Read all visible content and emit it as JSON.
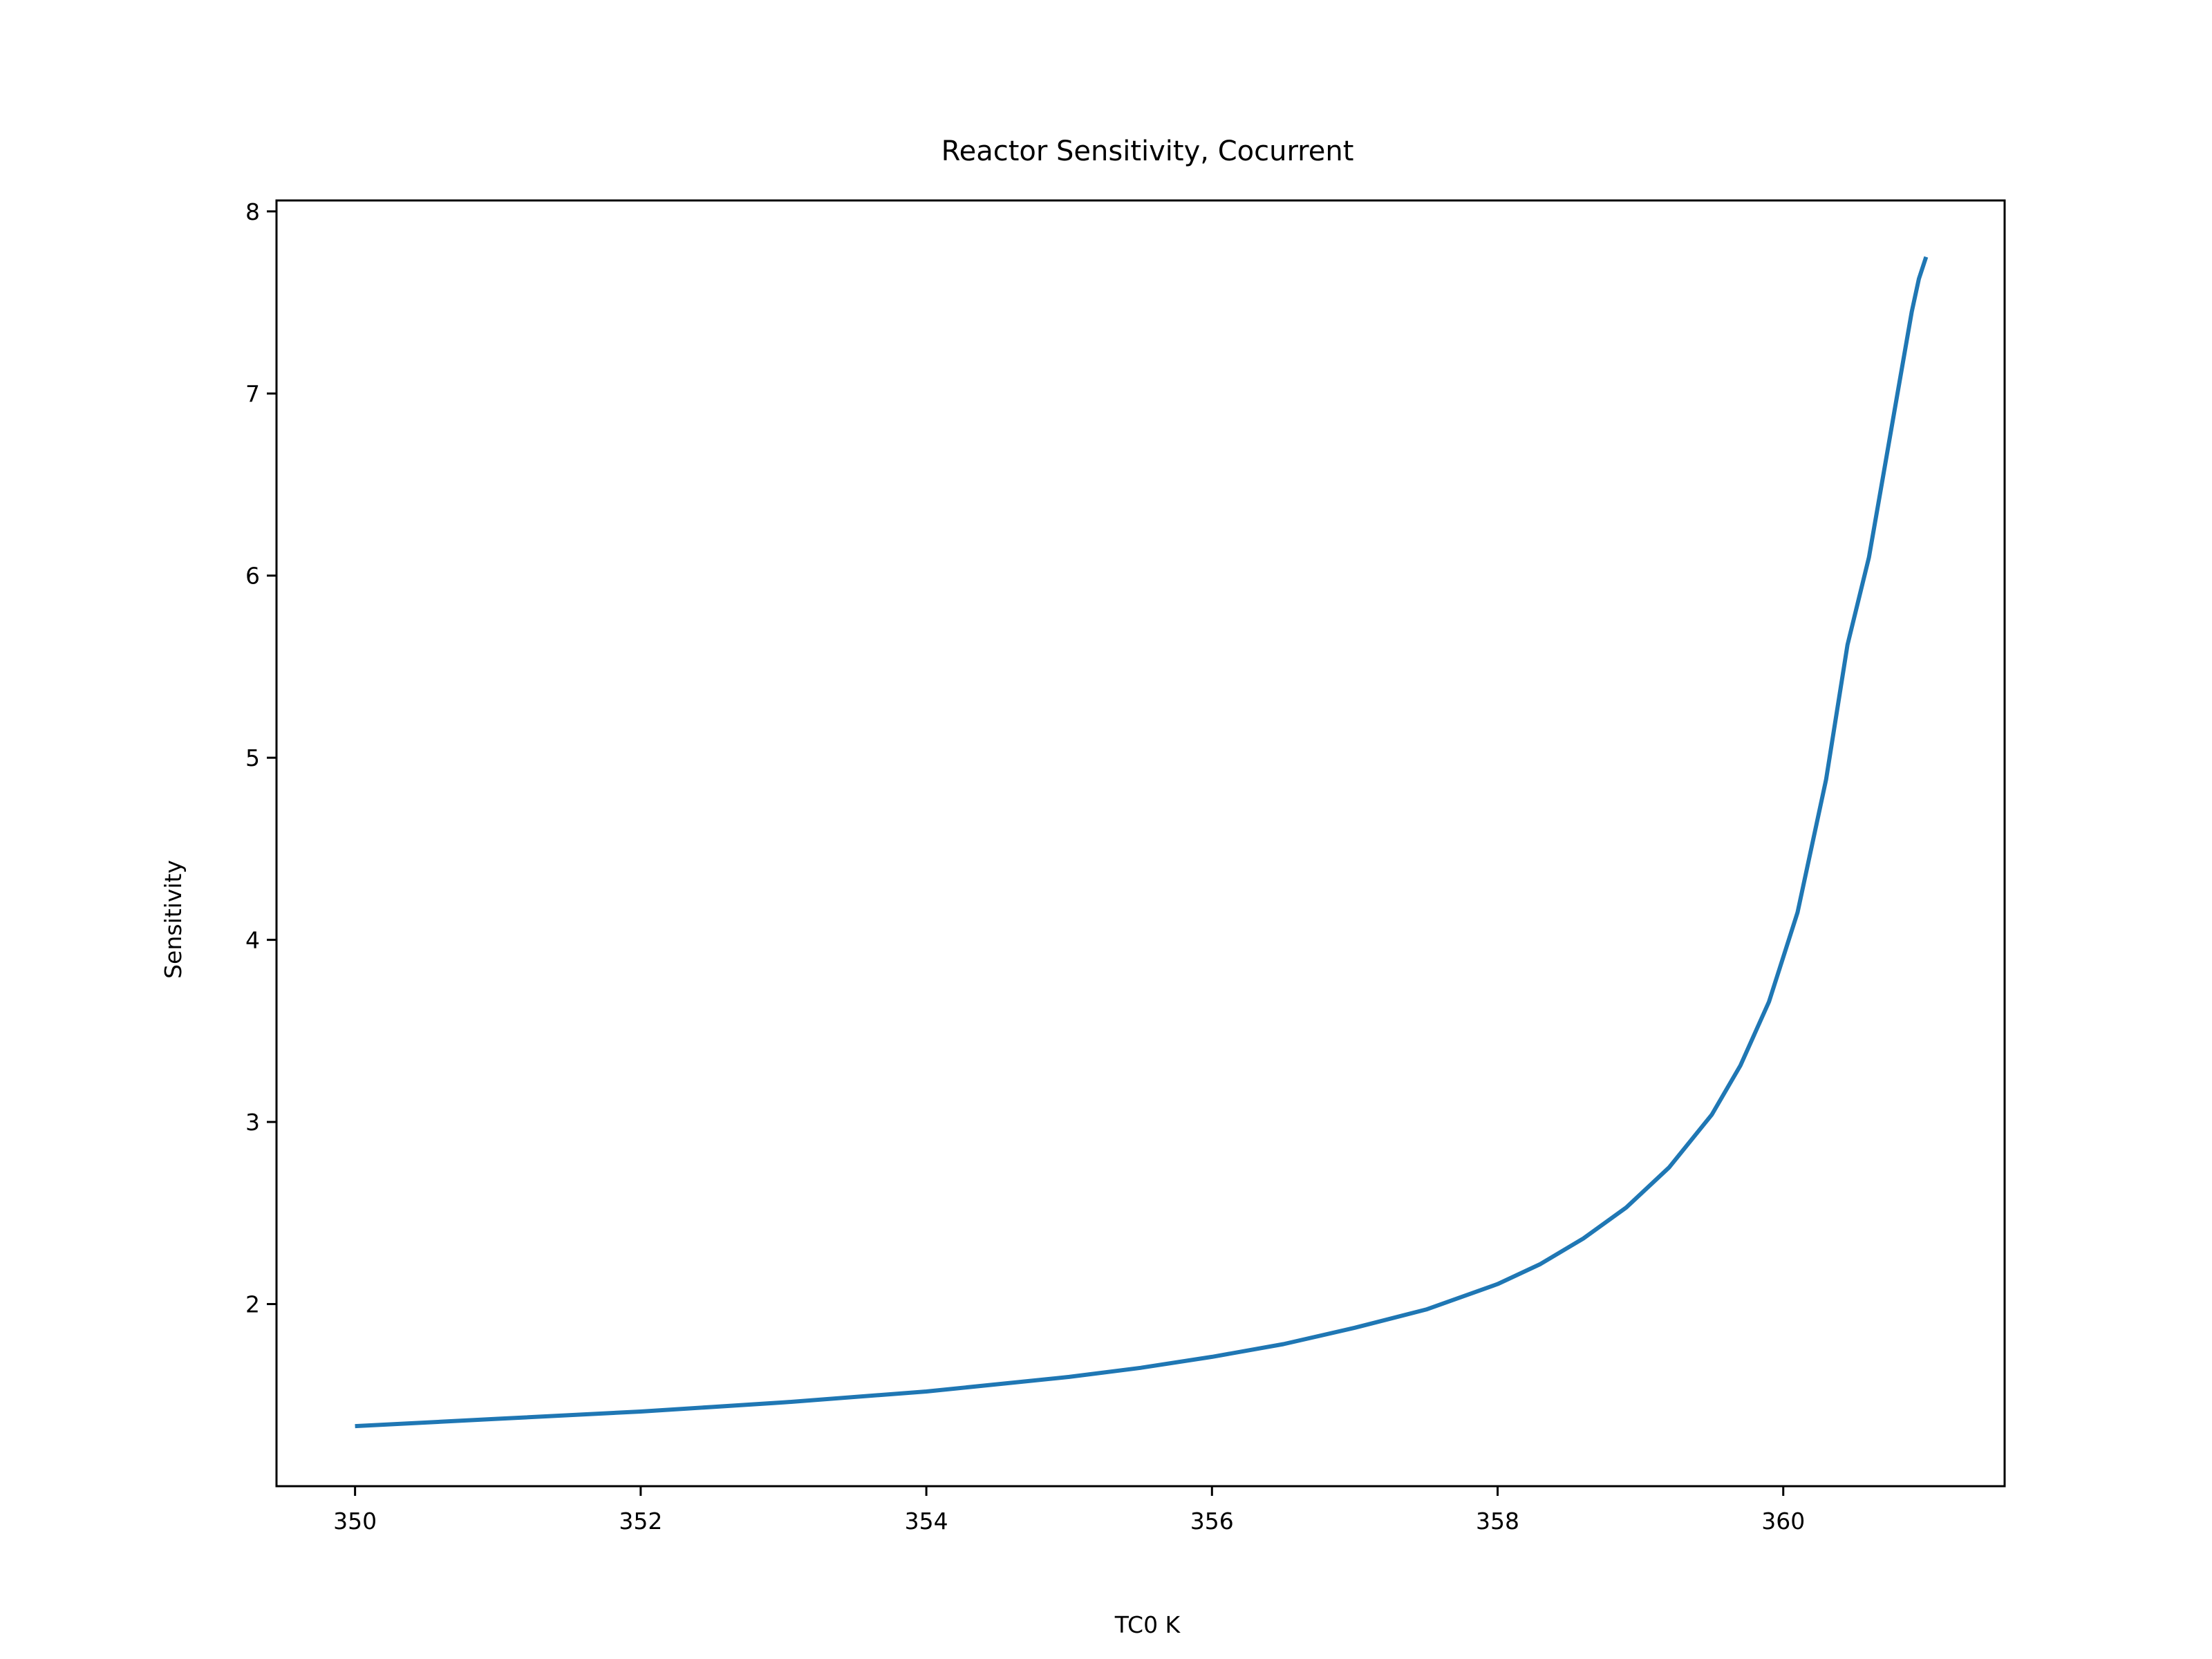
{
  "chart_data": {
    "type": "line",
    "title": "Reactor Sensitivity, Cocurrent",
    "xlabel": "TC0 K",
    "ylabel": "Sensitivity",
    "xlim": [
      349.45,
      361.55
    ],
    "ylim": [
      1.0,
      8.06
    ],
    "xticks": [
      "350",
      "352",
      "354",
      "356",
      "358",
      "360"
    ],
    "xtick_values": [
      350,
      352,
      354,
      356,
      358,
      360
    ],
    "yticks": [
      "2",
      "3",
      "4",
      "5",
      "6",
      "7",
      "8"
    ],
    "ytick_values": [
      2,
      3,
      4,
      5,
      6,
      7,
      8
    ],
    "grid": false,
    "series": [
      {
        "color": "#1f77b4",
        "x": [
          350.0,
          351.0,
          352.0,
          353.0,
          354.0,
          355.0,
          355.5,
          356.0,
          356.5,
          357.0,
          357.5,
          358.0,
          358.3,
          358.6,
          358.9,
          359.2,
          359.5,
          359.7,
          359.9,
          360.1,
          360.3,
          360.45,
          360.6,
          360.7,
          360.8,
          360.9,
          360.95,
          361.0
        ],
        "y": [
          1.33,
          1.37,
          1.41,
          1.46,
          1.52,
          1.6,
          1.65,
          1.71,
          1.78,
          1.87,
          1.97,
          2.11,
          2.22,
          2.36,
          2.53,
          2.75,
          3.04,
          3.31,
          3.66,
          4.15,
          4.88,
          5.62,
          6.1,
          6.55,
          7.0,
          7.45,
          7.63,
          7.75
        ]
      }
    ]
  }
}
